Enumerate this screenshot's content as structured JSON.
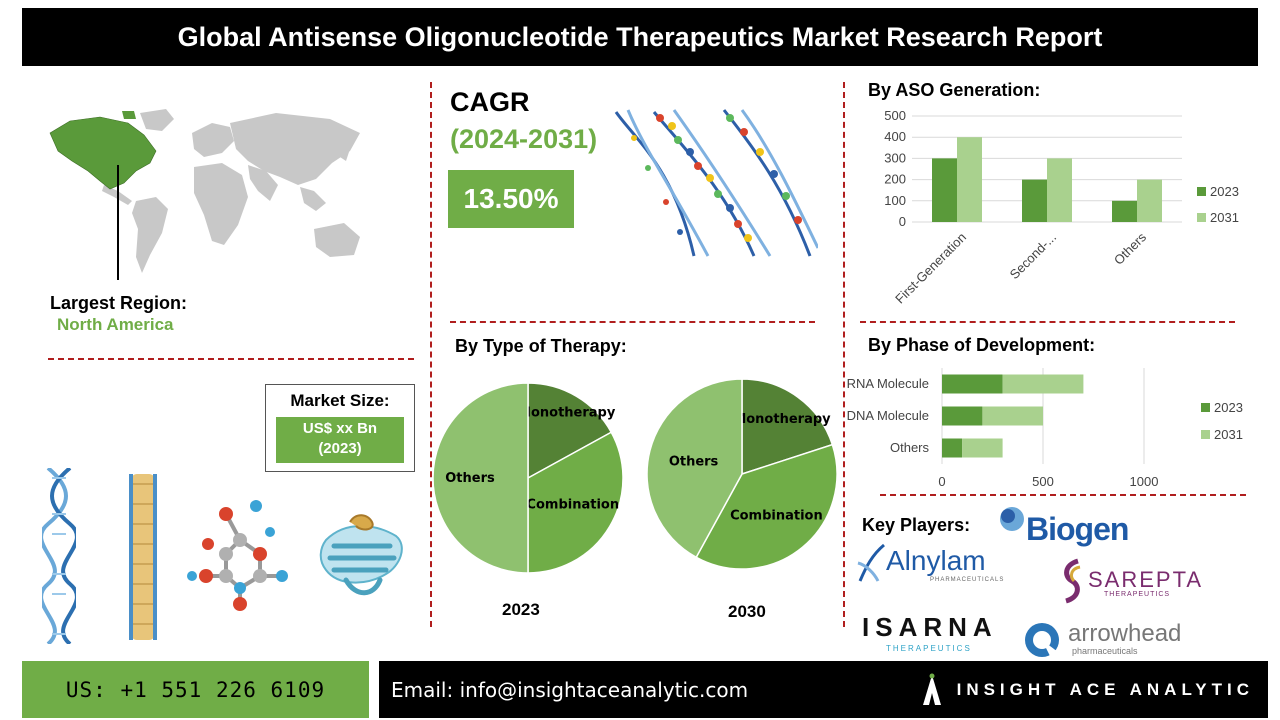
{
  "title": "Global Antisense Oligonucleotide Therapeutics Market Research Report",
  "region": {
    "label": "Largest Region:",
    "value": "North America"
  },
  "market_size": {
    "label": "Market Size:",
    "value_line1": "US$ xx Bn",
    "value_line2": "(2023)"
  },
  "cagr": {
    "title": "CAGR",
    "period": "(2024-2031)",
    "value": "13.50%"
  },
  "sections": {
    "aso_generation": "By ASO Generation:",
    "type_of_therapy": "By Type of Therapy:",
    "phase_of_development": "By Phase of Development:",
    "key_players": "Key Players:"
  },
  "colors": {
    "dark_green": "#5a9a3a",
    "mid_green": "#70ad47",
    "light_green": "#a9d18e",
    "pie_light": "#8fc16f",
    "pie_dark": "#548235",
    "accent_red": "#b01e1e"
  },
  "chart_data": [
    {
      "id": "aso_generation",
      "type": "bar",
      "categories": [
        "First-Generation",
        "Second-...",
        "Others"
      ],
      "series": [
        {
          "name": "2023",
          "values": [
            300,
            200,
            100
          ]
        },
        {
          "name": "2031",
          "values": [
            400,
            300,
            200
          ]
        }
      ],
      "yticks": [
        "0",
        "100",
        "200",
        "300",
        "400",
        "500"
      ],
      "ylim": [
        0,
        500
      ],
      "grid": true,
      "legend": "right"
    },
    {
      "id": "phase_of_development",
      "type": "bar",
      "orientation": "horizontal",
      "stacked": true,
      "categories": [
        "RNA Molecule",
        "DNA Molecule",
        "Others"
      ],
      "series": [
        {
          "name": "2023",
          "values": [
            300,
            200,
            100
          ]
        },
        {
          "name": "2031",
          "values": [
            400,
            300,
            200
          ]
        }
      ],
      "xticks": [
        "0",
        "500",
        "1000"
      ],
      "xlim": [
        0,
        1000
      ],
      "grid": true,
      "legend": "right"
    },
    {
      "id": "therapy_2023",
      "type": "pie",
      "caption": "2023",
      "labels": [
        "Monotherapy",
        "Combination",
        "Others"
      ],
      "values": [
        17,
        33,
        50
      ]
    },
    {
      "id": "therapy_2030",
      "type": "pie",
      "caption": "2030",
      "labels": [
        "Monotherapy",
        "Combination",
        "Others"
      ],
      "values": [
        20,
        38,
        42
      ]
    }
  ],
  "key_players": {
    "biogen": "Biogen",
    "alnylam": "Alnylam",
    "alnylam_sub": "PHARMACEUTICALS",
    "sarepta": "SAREPTA",
    "sarepta_sub": "THERAPEUTICS",
    "isarna": "ISARNA",
    "isarna_sub": "THERAPEUTICS",
    "arrowhead": "arrowhead",
    "arrowhead_sub": "pharmaceuticals"
  },
  "footer": {
    "phone": "US: +1 551 226 6109",
    "email": "Email: info@insightaceanalytic.com",
    "brand": "INSIGHT ACE ANALYTIC"
  }
}
